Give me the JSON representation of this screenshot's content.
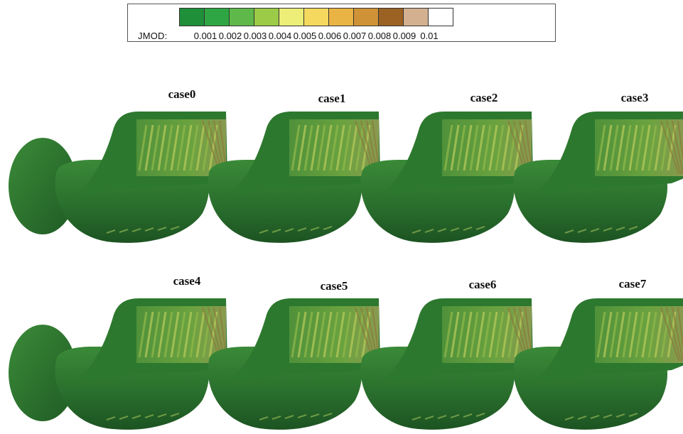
{
  "legend": {
    "variable": "JMOD:",
    "ticks": [
      "0.001",
      "0.002",
      "0.003",
      "0.004",
      "0.005",
      "0.006",
      "0.007",
      "0.008",
      "0.009",
      "0.01"
    ],
    "colors": [
      "#1f8f3a",
      "#2fa644",
      "#5fb84a",
      "#9ccb48",
      "#ecee78",
      "#f5d85e",
      "#eab444",
      "#cf9236",
      "#9b6224",
      "#d3b090",
      "#ffffff"
    ]
  },
  "cases": [
    {
      "label": "case0"
    },
    {
      "label": "case1"
    },
    {
      "label": "case2"
    },
    {
      "label": "case3"
    },
    {
      "label": "case4"
    },
    {
      "label": "case5"
    },
    {
      "label": "case6"
    },
    {
      "label": "case7"
    }
  ],
  "palette": {
    "hull_dark": "#1f5c25",
    "hull_mid": "#2e7a31",
    "hull_light": "#3f8f3c",
    "window": "#5a9a3e",
    "stripe": "#c8d35a"
  }
}
